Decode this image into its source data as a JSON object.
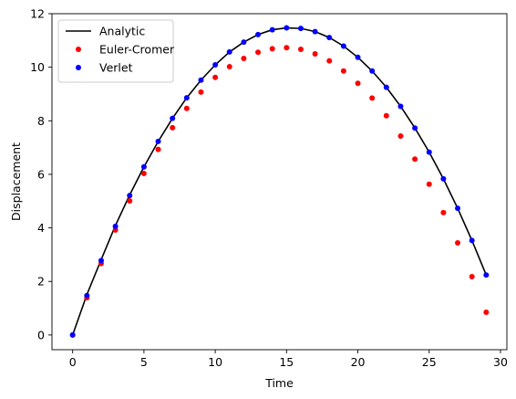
{
  "chart_data": {
    "type": "line",
    "title": "",
    "xlabel": "Time",
    "ylabel": "Displacement",
    "xlim": [
      -1.45,
      30.45
    ],
    "ylim": [
      -0.55,
      12.0
    ],
    "xticks": [
      0,
      5,
      10,
      15,
      20,
      25,
      30
    ],
    "yticks": [
      0,
      2,
      4,
      6,
      8,
      10,
      12
    ],
    "grid": false,
    "legend_position": "top-left",
    "series": [
      {
        "name": "Analytic",
        "kind": "line",
        "color": "#000000",
        "x": [
          0,
          1,
          2,
          3,
          4,
          5,
          6,
          7,
          8,
          9,
          10,
          11,
          12,
          13,
          14,
          15,
          16,
          17,
          18,
          19,
          20,
          21,
          22,
          23,
          24,
          25,
          26,
          27,
          28,
          29
        ],
        "y": [
          0,
          1.51,
          2.81,
          4.09,
          5.23,
          6.28,
          7.23,
          8.09,
          8.86,
          9.52,
          10.09,
          10.57,
          10.94,
          11.22,
          11.4,
          11.47,
          11.45,
          11.33,
          11.11,
          10.79,
          10.37,
          9.86,
          9.25,
          8.54,
          7.73,
          6.83,
          5.83,
          4.73,
          3.53,
          2.24
        ]
      },
      {
        "name": "Euler-Cromer",
        "kind": "scatter",
        "color": "#ff0000",
        "x": [
          0,
          1,
          2,
          3,
          4,
          5,
          6,
          7,
          8,
          9,
          10,
          11,
          12,
          13,
          14,
          15,
          16,
          17,
          18,
          19,
          20,
          21,
          22,
          23,
          24,
          25,
          26,
          27,
          28,
          29
        ],
        "y": [
          0,
          1.39,
          2.67,
          3.92,
          5.01,
          6.03,
          6.93,
          7.74,
          8.46,
          9.07,
          9.62,
          10.02,
          10.33,
          10.56,
          10.69,
          10.73,
          10.67,
          10.5,
          10.24,
          9.86,
          9.4,
          8.85,
          8.19,
          7.43,
          6.57,
          5.63,
          4.57,
          3.44,
          2.18,
          0.85
        ]
      },
      {
        "name": "Verlet",
        "kind": "scatter",
        "color": "#0000ff",
        "x": [
          0,
          1,
          2,
          3,
          4,
          5,
          6,
          7,
          8,
          9,
          10,
          11,
          12,
          13,
          14,
          15,
          16,
          17,
          18,
          19,
          20,
          21,
          22,
          23,
          24,
          25,
          26,
          27,
          28,
          29
        ],
        "y": [
          0,
          1.47,
          2.78,
          4.06,
          5.21,
          6.28,
          7.23,
          8.09,
          8.86,
          9.52,
          10.09,
          10.57,
          10.94,
          11.22,
          11.4,
          11.47,
          11.45,
          11.33,
          11.11,
          10.79,
          10.37,
          9.86,
          9.25,
          8.54,
          7.73,
          6.83,
          5.83,
          4.73,
          3.53,
          2.24
        ]
      }
    ]
  }
}
